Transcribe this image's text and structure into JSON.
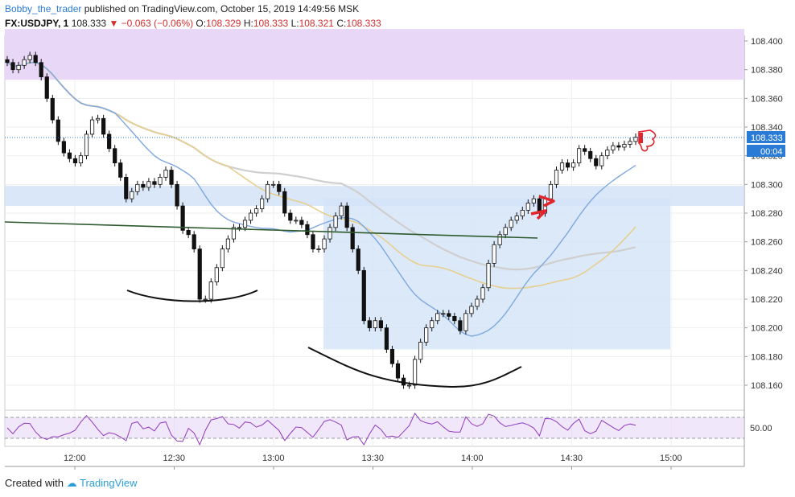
{
  "header": {
    "author": "Bobby_the_trader",
    "published_text": "published on TradingView.com, October 15, 2019 14:49:56 MSK"
  },
  "ohlc": {
    "symbol": "FX:USDJPY, 1",
    "last": "108.333",
    "down_arrow": "▼",
    "change": "−0.063 (−0.06%)",
    "o_label": "O:",
    "o": "108.329",
    "h_label": "H:",
    "h": "108.333",
    "l_label": "L:",
    "l": "108.321",
    "c_label": "C:",
    "c": "108.333"
  },
  "price_axis": {
    "ticks": [
      "108.400",
      "108.380",
      "108.360",
      "108.340",
      "108.320",
      "108.300",
      "108.280",
      "108.260",
      "108.240",
      "108.220",
      "108.200",
      "108.180",
      "108.160"
    ],
    "current_price": "108.333",
    "countdown": "00:04"
  },
  "time_axis": {
    "ticks": [
      "12:00",
      "12:30",
      "13:00",
      "13:30",
      "14:00",
      "14:30",
      "15:00"
    ]
  },
  "rsi": {
    "level_label": "50.00"
  },
  "footer": {
    "created_with": "Created with",
    "brand": "TradingView"
  },
  "colors": {
    "up": "#ffffff",
    "down": "#111111",
    "zone_purple": "#e8d7f7",
    "zone_blue": "#d3e3f7",
    "ma_fast": "#7fa8e0",
    "ma_mid": "#e6cf8f",
    "ma_slow": "#cfcfcf",
    "trend_line": "#2e5a2e",
    "arrows": "#e3242b",
    "price_badge": "#2a7bd5"
  },
  "chart_data": {
    "type": "candlestick",
    "symbol": "FX:USDJPY",
    "interval": "1",
    "x_range": [
      "11:40",
      "15:10"
    ],
    "y_range": [
      108.15,
      108.405
    ],
    "candles_close": [
      108.385,
      108.38,
      108.383,
      108.387,
      108.39,
      108.385,
      108.375,
      108.36,
      108.345,
      108.33,
      108.322,
      108.318,
      108.315,
      108.32,
      108.335,
      108.345,
      108.346,
      108.335,
      108.325,
      108.315,
      108.305,
      108.29,
      108.295,
      108.3,
      108.298,
      108.302,
      108.3,
      108.305,
      108.31,
      108.3,
      108.285,
      108.268,
      108.265,
      108.255,
      108.22,
      108.22,
      108.232,
      108.242,
      108.255,
      108.262,
      108.27,
      108.27,
      108.275,
      108.28,
      108.283,
      108.29,
      108.3,
      108.3,
      108.295,
      108.28,
      108.275,
      108.275,
      108.272,
      108.265,
      108.255,
      108.255,
      108.262,
      108.27,
      108.278,
      108.285,
      108.27,
      108.255,
      108.24,
      108.205,
      108.2,
      108.205,
      108.2,
      108.185,
      108.175,
      108.165,
      108.16,
      108.16,
      108.178,
      108.19,
      108.2,
      108.205,
      108.21,
      108.21,
      108.208,
      108.205,
      108.198,
      108.21,
      108.215,
      108.22,
      108.228,
      108.245,
      108.258,
      108.265,
      108.27,
      108.275,
      108.278,
      108.282,
      108.287,
      108.29,
      108.28,
      108.29,
      108.3,
      108.31,
      108.315,
      108.312,
      108.315,
      108.325,
      108.323,
      108.318,
      108.313,
      108.32,
      108.324,
      108.327,
      108.326,
      108.328,
      108.33,
      108.333
    ]
  }
}
